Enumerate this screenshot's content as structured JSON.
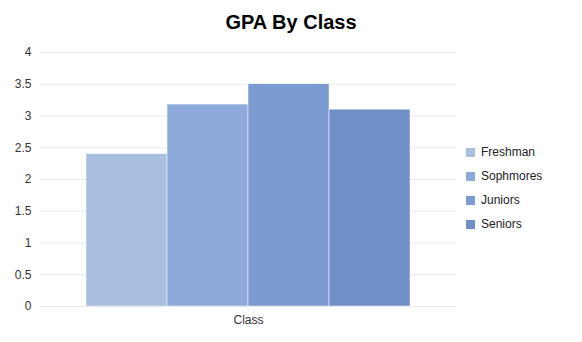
{
  "chart_data": {
    "type": "bar",
    "title": "GPA By Class",
    "categories": [
      "Class"
    ],
    "series": [
      {
        "name": "Freshman",
        "color": "#a9bfe0",
        "values": [
          2.4
        ]
      },
      {
        "name": "Sophmores",
        "color": "#8eaadb",
        "values": [
          3.18
        ]
      },
      {
        "name": "Juniors",
        "color": "#7b9bd1",
        "values": [
          3.5
        ]
      },
      {
        "name": "Seniors",
        "color": "#6f8fc8",
        "values": [
          3.1
        ]
      }
    ],
    "ylim": [
      0,
      4
    ],
    "yticks": [
      0,
      0.5,
      1,
      1.5,
      2,
      2.5,
      3,
      3.5,
      4
    ],
    "grid": true,
    "legend": "right"
  }
}
